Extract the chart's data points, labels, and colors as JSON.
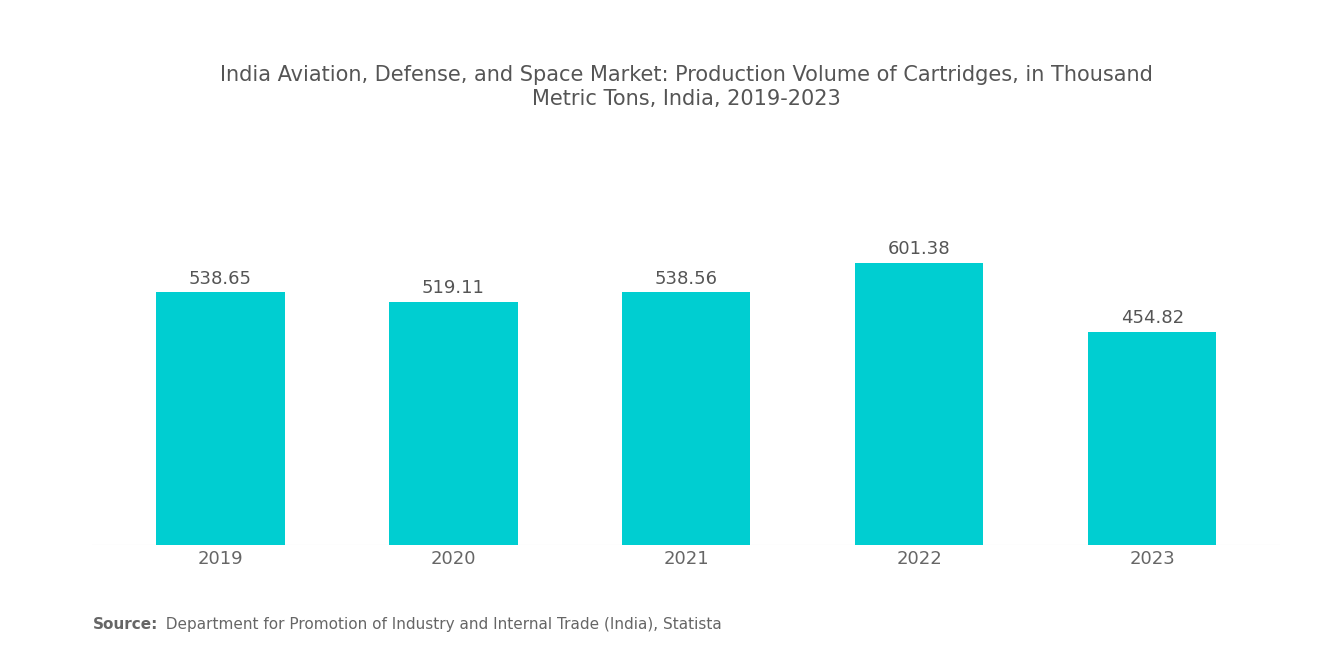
{
  "title": "India Aviation, Defense, and Space Market: Production Volume of Cartridges, in Thousand\nMetric Tons, India, 2019-2023",
  "categories": [
    "2019",
    "2020",
    "2021",
    "2022",
    "2023"
  ],
  "values": [
    538.65,
    519.11,
    538.56,
    601.38,
    454.82
  ],
  "bar_color": "#00CED1",
  "bar_width": 0.55,
  "label_fontsize": 13,
  "title_fontsize": 15,
  "tick_fontsize": 13,
  "label_color": "#555555",
  "title_color": "#555555",
  "tick_color": "#666666",
  "source_bold": "Source:",
  "source_text": "  Department for Promotion of Industry and Internal Trade (India), Statista",
  "source_fontsize": 11,
  "background_color": "#ffffff",
  "ylim": [
    0,
    850
  ],
  "figsize": [
    13.2,
    6.65
  ],
  "dpi": 100
}
